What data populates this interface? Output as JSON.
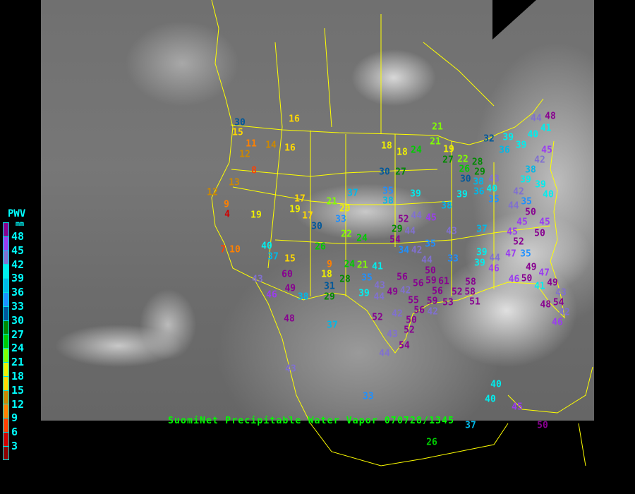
{
  "title": "SuomiNet Precipitable Water Vapor 070728/1345",
  "legend": {
    "title": "PWV",
    "unit": "mm",
    "ticks": [
      "48",
      "45",
      "42",
      "39",
      "36",
      "33",
      "30",
      "27",
      "24",
      "21",
      "18",
      "15",
      "12",
      "9",
      "6",
      "3"
    ],
    "colors": [
      "#880090",
      "#9a3cf0",
      "#8070d0",
      "#00eeee",
      "#00b8e8",
      "#1e90ff",
      "#00589a",
      "#008a00",
      "#00cc00",
      "#80ff00",
      "#f0f000",
      "#ffd800",
      "#cc8800",
      "#ff8000",
      "#ff4000",
      "#d00000",
      "#8b0000"
    ]
  },
  "stations": [
    30,
    15,
    11,
    14,
    12,
    16,
    16,
    8,
    13,
    12,
    9,
    4,
    19,
    17,
    19,
    17,
    30,
    21,
    20,
    33,
    37,
    38,
    22,
    24,
    26,
    40,
    37,
    15,
    7,
    10,
    60,
    43,
    49,
    46,
    38,
    48,
    9,
    18,
    28,
    31,
    29,
    24,
    21,
    41,
    35,
    39,
    44,
    37,
    52,
    42,
    43,
    44,
    33,
    43,
    37,
    26,
    40,
    40,
    45,
    50,
    21,
    18,
    18,
    24,
    30,
    27,
    21,
    19,
    27,
    22,
    28,
    26,
    30,
    29,
    38,
    43,
    32,
    39,
    36,
    39,
    44,
    41,
    40,
    48,
    45,
    42,
    38,
    39,
    39,
    40,
    39,
    38,
    39,
    35,
    36,
    40,
    35,
    42,
    35,
    44,
    50,
    52,
    44,
    44,
    45,
    29,
    54,
    43,
    37,
    45,
    45,
    50,
    45,
    52,
    47,
    35,
    35,
    34,
    42,
    33,
    39,
    39,
    44,
    46,
    44,
    50,
    49,
    46,
    50,
    47,
    41,
    49,
    58,
    56,
    56,
    59,
    61,
    56,
    59,
    53,
    52,
    58,
    51,
    42,
    55,
    56,
    42,
    43,
    49,
    50,
    52,
    54,
    46,
    48,
    42,
    43,
    54
  ]
}
